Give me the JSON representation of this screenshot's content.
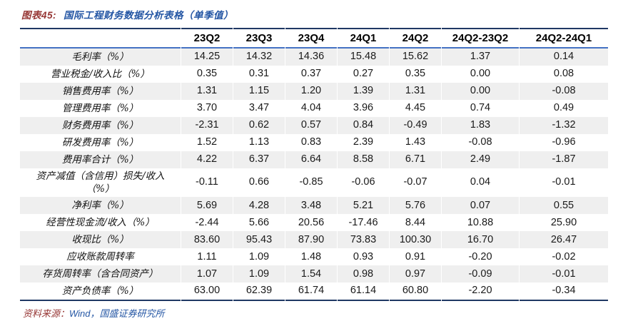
{
  "title": {
    "prefix": "图表45:",
    "text": "国际工程财务数据分析表格（单季值）"
  },
  "source": {
    "label": "资料来源：",
    "text": "Wind，国盛证券研究所"
  },
  "colors": {
    "caption_prefix": "#963634",
    "caption_text": "#2456A4",
    "table_outer_border": "#1F3864",
    "header_underline": "#4472C4",
    "stripe_row": "#efefef"
  },
  "chart_data": {
    "type": "table",
    "title": "国际工程财务数据分析表格（单季值）",
    "columns": [
      "",
      "23Q2",
      "23Q3",
      "23Q4",
      "24Q1",
      "24Q2",
      "24Q2-23Q2",
      "24Q2-24Q1"
    ],
    "rows": [
      {
        "label": "毛利率（%）",
        "values": [
          "14.25",
          "14.32",
          "14.36",
          "15.48",
          "15.62",
          "1.37",
          "0.14"
        ]
      },
      {
        "label": "营业税金/收入比（%）",
        "values": [
          "0.35",
          "0.31",
          "0.37",
          "0.27",
          "0.35",
          "0.00",
          "0.08"
        ]
      },
      {
        "label": "销售费用率（%）",
        "values": [
          "1.31",
          "1.15",
          "1.20",
          "1.39",
          "1.31",
          "0.00",
          "-0.08"
        ]
      },
      {
        "label": "管理费用率（%）",
        "values": [
          "3.70",
          "3.47",
          "4.04",
          "3.96",
          "4.45",
          "0.74",
          "0.49"
        ]
      },
      {
        "label": "财务费用率（%）",
        "values": [
          "-2.31",
          "0.62",
          "0.57",
          "0.84",
          "-0.49",
          "1.83",
          "-1.32"
        ]
      },
      {
        "label": "研发费用率（%）",
        "values": [
          "1.52",
          "1.13",
          "0.83",
          "2.39",
          "1.43",
          "-0.08",
          "-0.96"
        ]
      },
      {
        "label": "费用率合计（%）",
        "values": [
          "4.22",
          "6.37",
          "6.64",
          "8.58",
          "6.71",
          "2.49",
          "-1.87"
        ]
      },
      {
        "label": "资产减值（含信用）损失/收入（%）",
        "values": [
          "-0.11",
          "0.66",
          "-0.85",
          "-0.06",
          "-0.07",
          "0.04",
          "-0.01"
        ]
      },
      {
        "label": "净利率（%）",
        "values": [
          "5.69",
          "4.28",
          "3.48",
          "5.21",
          "5.76",
          "0.07",
          "0.55"
        ]
      },
      {
        "label": "经营性现金流/收入（%）",
        "values": [
          "-2.44",
          "5.66",
          "20.56",
          "-17.46",
          "8.44",
          "10.88",
          "25.90"
        ]
      },
      {
        "label": "收现比（%）",
        "values": [
          "83.60",
          "95.43",
          "87.90",
          "73.83",
          "100.30",
          "16.70",
          "26.47"
        ]
      },
      {
        "label": "应收账款周转率",
        "values": [
          "1.11",
          "1.09",
          "1.48",
          "0.93",
          "0.91",
          "-0.20",
          "-0.02"
        ]
      },
      {
        "label": "存货周转率（含合同资产）",
        "values": [
          "1.07",
          "1.09",
          "1.54",
          "0.98",
          "0.97",
          "-0.09",
          "-0.01"
        ]
      },
      {
        "label": "资产负债率（%）",
        "values": [
          "63.00",
          "62.39",
          "61.74",
          "61.14",
          "60.80",
          "-2.20",
          "-0.34"
        ]
      }
    ]
  }
}
